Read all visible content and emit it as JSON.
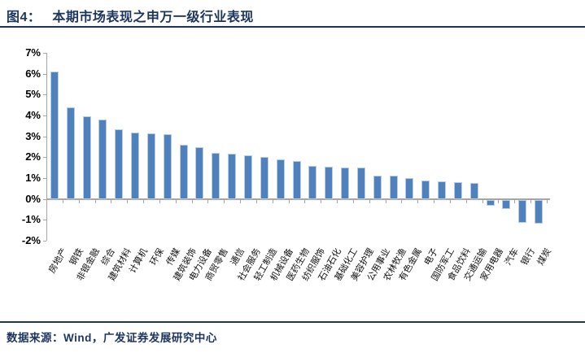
{
  "header": {
    "tag": "图4：",
    "title": "本期市场表现之申万一级行业表现"
  },
  "footer": {
    "source": "数据来源：Wind，广发证券发展研究中心"
  },
  "colors": {
    "navy": "#1c355e",
    "bar_blue": "#4f81bd",
    "axis_gray": "#a6a6a6"
  },
  "chart_data": {
    "type": "bar",
    "title": "本期市场表现之申万一级行业表现",
    "xlabel": "",
    "ylabel": "",
    "unit": "%",
    "ylim": [
      -2,
      7
    ],
    "grid": false,
    "legend": false,
    "bar_color": "#4f81bd",
    "y_ticks": [
      "7%",
      "6%",
      "5%",
      "4%",
      "3%",
      "2%",
      "1%",
      "0%",
      "-1%",
      "-2%"
    ],
    "categories": [
      "房地产",
      "钢铁",
      "非银金融",
      "综合",
      "建筑材料",
      "计算机",
      "环保",
      "传媒",
      "建筑装饰",
      "电力设备",
      "商贸零售",
      "通信",
      "社会服务",
      "轻工制造",
      "机械设备",
      "医药生物",
      "纺织服饰",
      "石油石化",
      "基础化工",
      "美容护理",
      "公用事业",
      "农林牧渔",
      "有色金属",
      "电子",
      "国防军工",
      "食品饮料",
      "交通运输",
      "家用电器",
      "汽车",
      "银行",
      "煤炭"
    ],
    "values": [
      6.1,
      4.4,
      3.95,
      3.8,
      3.35,
      3.2,
      3.15,
      3.1,
      2.6,
      2.5,
      2.2,
      2.15,
      2.1,
      2.0,
      1.9,
      1.8,
      1.6,
      1.55,
      1.5,
      1.5,
      1.1,
      1.1,
      1.0,
      0.9,
      0.85,
      0.8,
      0.75,
      -0.3,
      -0.45,
      -1.1,
      -1.15
    ]
  }
}
